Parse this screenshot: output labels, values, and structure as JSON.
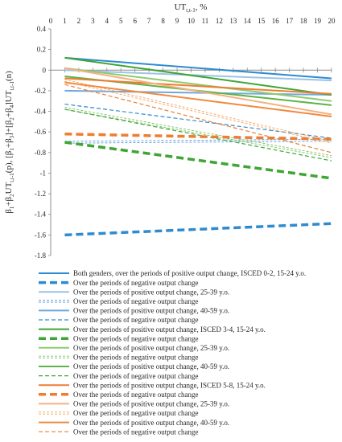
{
  "chart_data": {
    "type": "line",
    "title": "",
    "xlabel": "UT",
    "xlabel_sub": "t,t-1",
    "xlabel_suffix": ", %",
    "ylabel": "β₁+β₂UT_{t,t-1}(p), [β₁+β₃]+[β₂+β₄]UT_{t,t-1}(n)",
    "ylabel_parts": [
      {
        "t": "β",
        "s": ""
      },
      {
        "t": "1",
        "s": "sub"
      },
      {
        "t": "+β",
        "s": ""
      },
      {
        "t": "2",
        "s": "sub"
      },
      {
        "t": "UT",
        "s": ""
      },
      {
        "t": "t,t-1",
        "s": "sub"
      },
      {
        "t": "(p), [β",
        "s": ""
      },
      {
        "t": "1",
        "s": "sub"
      },
      {
        "t": "+β",
        "s": ""
      },
      {
        "t": "3",
        "s": "sub"
      },
      {
        "t": "]+[β",
        "s": ""
      },
      {
        "t": "2",
        "s": "sub"
      },
      {
        "t": "+β",
        "s": ""
      },
      {
        "t": "4",
        "s": "sub"
      },
      {
        "t": "]UT",
        "s": ""
      },
      {
        "t": "t,t-1",
        "s": "sub"
      },
      {
        "t": "(n)",
        "s": ""
      }
    ],
    "x_ticks": [
      0,
      1,
      2,
      3,
      4,
      5,
      6,
      7,
      8,
      9,
      10,
      11,
      12,
      13,
      14,
      15,
      16,
      17,
      18,
      19,
      20
    ],
    "y_ticks": [
      0.4,
      0.2,
      0,
      -0.2,
      -0.4,
      -0.6,
      -0.8,
      -1,
      -1.2,
      -1.4,
      -1.6,
      -1.8
    ],
    "y_tick_labels": [
      "0.4",
      "0.2",
      "0",
      "-0.2",
      "-0.4",
      "-0.6",
      "-0.8",
      "-1",
      "-1.2",
      "-1.4",
      "-1.6",
      "-1.8"
    ],
    "xlim": [
      0,
      20
    ],
    "ylim": [
      -1.8,
      0.4
    ],
    "grid": false,
    "legend_position": "bottom",
    "series": [
      {
        "name": "Both genders, over the periods of positive output change, ISCED 0-2, 15-24 y.o.",
        "x": [
          1,
          20
        ],
        "y": [
          0.12,
          -0.08
        ],
        "color": "#2E8BD0",
        "dash": "solid",
        "width": 2
      },
      {
        "name": "Over the periods of negative output change",
        "x": [
          1,
          20
        ],
        "y": [
          -1.6,
          -1.49
        ],
        "color": "#2E8BD0",
        "dash": "dash",
        "width": 3.5
      },
      {
        "name": "Over the periods of positive output change, 25-39 y.o.",
        "x": [
          1,
          20
        ],
        "y": [
          0,
          -0.1
        ],
        "color": "#9DC3E6",
        "dash": "solid",
        "width": 2
      },
      {
        "name": "Over the periods of negative output change",
        "x": [
          1,
          20
        ],
        "y": [
          -0.7,
          -0.68
        ],
        "color": "#5B9BD5",
        "dash": "double",
        "width": 1.2
      },
      {
        "name": "Over the periods of positive output change, 40-59 y.o.",
        "x": [
          1,
          20
        ],
        "y": [
          -0.2,
          -0.24
        ],
        "color": "#6FA8DC",
        "dash": "solid",
        "width": 2
      },
      {
        "name": "Over the periods of negative output change",
        "x": [
          1,
          20
        ],
        "y": [
          -0.33,
          -0.66
        ],
        "color": "#2E8BD0",
        "dash": "dash",
        "width": 1.2
      },
      {
        "name": "Over the periods of positive output change, ISCED 3-4, 15-24 y.o.",
        "x": [
          1,
          20
        ],
        "y": [
          0.12,
          -0.24
        ],
        "color": "#3FA535",
        "dash": "solid",
        "width": 2
      },
      {
        "name": "Over the periods of negative output change",
        "x": [
          1,
          20
        ],
        "y": [
          -0.7,
          -1.05
        ],
        "color": "#3FA535",
        "dash": "dash",
        "width": 3.5
      },
      {
        "name": "Over the periods of positive output change, 25-39 y.o.",
        "x": [
          1,
          20
        ],
        "y": [
          0.02,
          -0.3
        ],
        "color": "#8DCB6E",
        "dash": "solid",
        "width": 2
      },
      {
        "name": "Over the periods of negative output change",
        "x": [
          1,
          20
        ],
        "y": [
          -0.37,
          -0.84
        ],
        "color": "#7CC060",
        "dash": "double",
        "width": 1.2
      },
      {
        "name": "Over the periods of positive output change, 40-59 y.o.",
        "x": [
          1,
          20
        ],
        "y": [
          -0.06,
          -0.34
        ],
        "color": "#5DB347",
        "dash": "solid",
        "width": 2
      },
      {
        "name": "Over the periods of negative output change",
        "x": [
          1,
          20
        ],
        "y": [
          -0.38,
          -0.88
        ],
        "color": "#3FA535",
        "dash": "dash",
        "width": 1.2
      },
      {
        "name": "Over the periods of positive output change, ISCED 5-8, 15-24 y.o.",
        "x": [
          1,
          20
        ],
        "y": [
          -0.08,
          -0.23
        ],
        "color": "#ED7D31",
        "dash": "solid",
        "width": 2
      },
      {
        "name": "Over the periods of negative output change",
        "x": [
          1,
          20
        ],
        "y": [
          -0.62,
          -0.67
        ],
        "color": "#ED7D31",
        "dash": "dash",
        "width": 3.5
      },
      {
        "name": "Over the periods of positive output change, 25-39 y.o.",
        "x": [
          1,
          20
        ],
        "y": [
          0.02,
          -0.43
        ],
        "color": "#F4B183",
        "dash": "solid",
        "width": 2
      },
      {
        "name": "Over the periods of negative output change",
        "x": [
          1,
          20
        ],
        "y": [
          -0.1,
          -0.7
        ],
        "color": "#F4A460",
        "dash": "double",
        "width": 1.2
      },
      {
        "name": "Over the periods of positive output change, 40-59 y.o.",
        "x": [
          1,
          20
        ],
        "y": [
          -0.12,
          -0.45
        ],
        "color": "#F08A3E",
        "dash": "solid",
        "width": 2
      },
      {
        "name": "Over the periods of negative output change",
        "x": [
          1,
          20
        ],
        "y": [
          -0.14,
          -0.8
        ],
        "color": "#ED7D31",
        "dash": "dash",
        "width": 1.2
      }
    ]
  }
}
